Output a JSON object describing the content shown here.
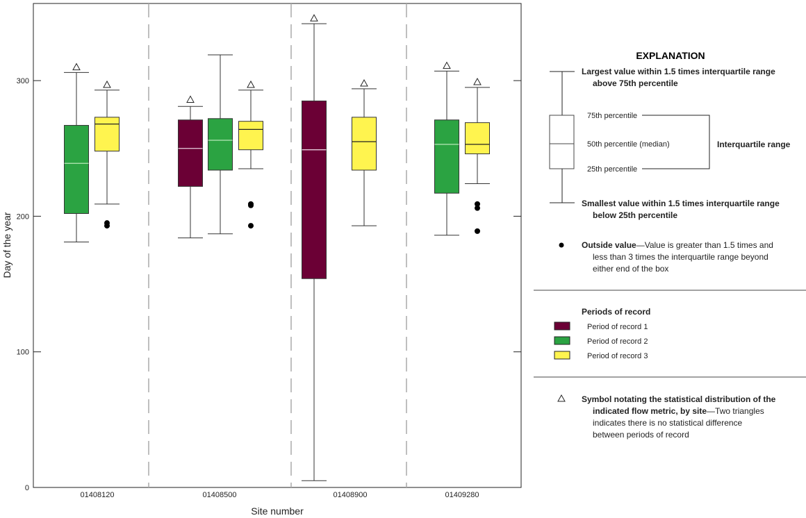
{
  "chart_data": {
    "type": "box",
    "title": "",
    "xlabel": "Site number",
    "ylabel": "Day of the year",
    "ylim": [
      0,
      357
    ],
    "yticks": [
      0,
      100,
      200,
      300
    ],
    "ytick_labels": [
      "0",
      "100",
      "200",
      "300"
    ],
    "categories": [
      "01408120",
      "01408500",
      "01408900",
      "01409280"
    ],
    "series_colors": {
      "Period of record 1": "#6b0035",
      "Period of record 2": "#2ba342",
      "Period of record 3": "#fff44f"
    },
    "groups": [
      {
        "site": "01408120",
        "boxes": [
          {
            "period": "Period of record 2",
            "whisker_high": 306,
            "q3": 267,
            "median": 239,
            "q1": 202,
            "whisker_low": 181,
            "outliers": [],
            "triangle": 310
          },
          {
            "period": "Period of record 3",
            "whisker_high": 293,
            "q3": 273,
            "median": 268,
            "q1": 248,
            "whisker_low": 209,
            "outliers": [
              195,
              193
            ],
            "triangle": 297
          }
        ]
      },
      {
        "site": "01408500",
        "boxes": [
          {
            "period": "Period of record 1",
            "whisker_high": 281,
            "q3": 271,
            "median": 250,
            "q1": 222,
            "whisker_low": 184,
            "outliers": [],
            "triangle": 286
          },
          {
            "period": "Period of record 2",
            "whisker_high": 319,
            "q3": 272,
            "median": 256,
            "q1": 234,
            "whisker_low": 187,
            "outliers": [],
            "triangle": null
          },
          {
            "period": "Period of record 3",
            "whisker_high": 293,
            "q3": 270,
            "median": 264,
            "q1": 249,
            "whisker_low": 235,
            "outliers": [
              209,
              208,
              193
            ],
            "triangle": 297
          }
        ]
      },
      {
        "site": "01408900",
        "boxes": [
          {
            "period": "Period of record 1",
            "whisker_high": 342,
            "q3": 285,
            "median": 249,
            "q1": 154,
            "whisker_low": 5,
            "outliers": [],
            "triangle": 346
          },
          {
            "period": "Period of record 3",
            "whisker_high": 294,
            "q3": 273,
            "median": 255,
            "q1": 234,
            "whisker_low": 193,
            "outliers": [],
            "triangle": 298
          }
        ]
      },
      {
        "site": "01409280",
        "boxes": [
          {
            "period": "Period of record 2",
            "whisker_high": 307,
            "q3": 271,
            "median": 253,
            "q1": 217,
            "whisker_low": 186,
            "outliers": [],
            "triangle": 311
          },
          {
            "period": "Period of record 3",
            "whisker_high": 295,
            "q3": 269,
            "median": 253,
            "q1": 246,
            "whisker_low": 224,
            "outliers": [
              209,
              206,
              189
            ],
            "triangle": 299
          }
        ]
      }
    ]
  },
  "explanation": {
    "title": "EXPLANATION",
    "largest_1": "Largest value within 1.5 times interquartile range",
    "largest_2": "above 75th percentile",
    "p75": "75th percentile",
    "p50": "50th percentile (median)",
    "p25": "25th percentile",
    "iqr": "Interquartile range",
    "smallest_1": "Smallest value within 1.5 times interquartile range",
    "smallest_2": "below 25th percentile",
    "outside_bold": "Outside value",
    "outside_1": "—Value is greater than 1.5 times and",
    "outside_2": "less than 3 times the interquartile range beyond",
    "outside_3": "either end of the box",
    "periods_title": "Periods of record",
    "periods": [
      "Period of record 1",
      "Period of record 2",
      "Period of record 3"
    ],
    "symbol_1": "Symbol notating the statistical distribution of the",
    "symbol_2_bold": "indicated flow metric, by site",
    "symbol_2_rest": "—Two triangles",
    "symbol_3": "indicates there is no statistical difference",
    "symbol_4": "between periods of record"
  }
}
